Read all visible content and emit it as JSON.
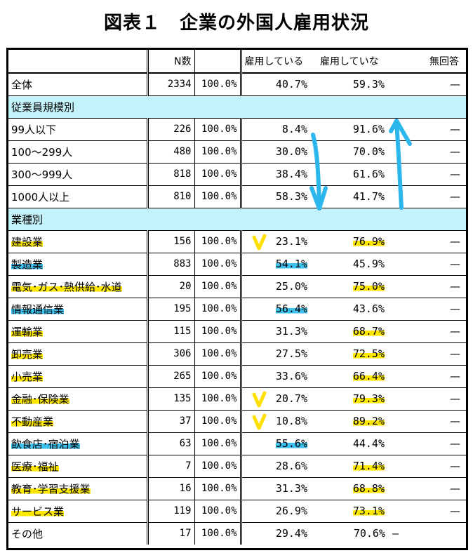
{
  "title": "図表１　企業の外国人雇用状況",
  "columns": [
    "",
    "N数",
    "",
    "雇用している",
    "雇用していな",
    "無回答"
  ],
  "rows": [
    {
      "type": "data",
      "label": "全体",
      "n": "2334",
      "pct": "100.0%",
      "yes": "40.7%",
      "no": "59.3%",
      "na": "—"
    },
    {
      "type": "section",
      "label": "従業員規模別"
    },
    {
      "type": "data",
      "label": "99人以下",
      "n": "226",
      "pct": "100.0%",
      "yes": "8.4%",
      "no": "91.6%",
      "na": "—"
    },
    {
      "type": "data",
      "label": "100～299人",
      "n": "480",
      "pct": "100.0%",
      "yes": "30.0%",
      "no": "70.0%",
      "na": "—"
    },
    {
      "type": "data",
      "label": "300～999人",
      "n": "818",
      "pct": "100.0%",
      "yes": "38.4%",
      "no": "61.6%",
      "na": "—"
    },
    {
      "type": "data",
      "label": "1000人以上",
      "n": "810",
      "pct": "100.0%",
      "yes": "58.3%",
      "no": "41.7%",
      "na": "—"
    },
    {
      "type": "section",
      "label": "業種別"
    },
    {
      "type": "data",
      "label": "建設業",
      "n": "156",
      "pct": "100.0%",
      "yes": "23.1%",
      "no": "76.9%",
      "na": "—",
      "label_hl": "yellow",
      "no_hl": "yellow",
      "check": true
    },
    {
      "type": "data",
      "label": "製造業",
      "n": "883",
      "pct": "100.0%",
      "yes": "54.1%",
      "no": "45.9%",
      "na": "—",
      "label_hl": "blue",
      "yes_hl": "blue"
    },
    {
      "type": "data",
      "label": "電気･ガス･熱供給･水道",
      "n": "20",
      "pct": "100.0%",
      "yes": "25.0%",
      "no": "75.0%",
      "na": "—",
      "label_hl": "yellow",
      "no_hl": "yellow"
    },
    {
      "type": "data",
      "label": "情報通信業",
      "n": "195",
      "pct": "100.0%",
      "yes": "56.4%",
      "no": "43.6%",
      "na": "—",
      "label_hl": "blue",
      "yes_hl": "blue"
    },
    {
      "type": "data",
      "label": "運輸業",
      "n": "115",
      "pct": "100.0%",
      "yes": "31.3%",
      "no": "68.7%",
      "na": "—",
      "label_hl": "yellow",
      "no_hl": "yellow"
    },
    {
      "type": "data",
      "label": "卸売業",
      "n": "306",
      "pct": "100.0%",
      "yes": "27.5%",
      "no": "72.5%",
      "na": "—",
      "label_hl": "yellow",
      "no_hl": "yellow"
    },
    {
      "type": "data",
      "label": "小売業",
      "n": "265",
      "pct": "100.0%",
      "yes": "33.6%",
      "no": "66.4%",
      "na": "—",
      "label_hl": "yellow",
      "no_hl": "yellow"
    },
    {
      "type": "data",
      "label": "金融･保険業",
      "n": "135",
      "pct": "100.0%",
      "yes": "20.7%",
      "no": "79.3%",
      "na": "—",
      "label_hl": "yellow",
      "no_hl": "yellow",
      "check": true
    },
    {
      "type": "data",
      "label": "不動産業",
      "n": "37",
      "pct": "100.0%",
      "yes": "10.8%",
      "no": "89.2%",
      "na": "—",
      "label_hl": "yellow",
      "no_hl": "yellow",
      "check": true
    },
    {
      "type": "data",
      "label": "飲食店･宿泊業",
      "n": "63",
      "pct": "100.0%",
      "yes": "55.6%",
      "no": "44.4%",
      "na": "—",
      "label_hl": "blue",
      "yes_hl": "blue"
    },
    {
      "type": "data",
      "label": "医療･福祉",
      "n": "7",
      "pct": "100.0%",
      "yes": "28.6%",
      "no": "71.4%",
      "na": "—",
      "label_hl": "yellow",
      "no_hl": "yellow"
    },
    {
      "type": "data",
      "label": "教育･学習支援業",
      "n": "16",
      "pct": "100.0%",
      "yes": "31.3%",
      "no": "68.8%",
      "na": "—",
      "label_hl": "yellow",
      "no_hl": "yellow"
    },
    {
      "type": "data",
      "label": "サービス業",
      "n": "119",
      "pct": "100.0%",
      "yes": "26.9%",
      "no": "73.1%",
      "na": "—",
      "label_hl": "yellow",
      "no_hl": "yellow"
    },
    {
      "type": "data",
      "label": "その他",
      "n": "17",
      "pct": "100.0%",
      "yes": "29.4%",
      "no": "70.6%",
      "na": "",
      "other_dash": "—"
    }
  ],
  "colors": {
    "section_bg": "#c4f2fa",
    "highlight_yellow": "#ffe800",
    "highlight_blue": "#3cc0ee",
    "pen_blue": "#2bb6ec",
    "pen_yellow": "#ffe000"
  }
}
